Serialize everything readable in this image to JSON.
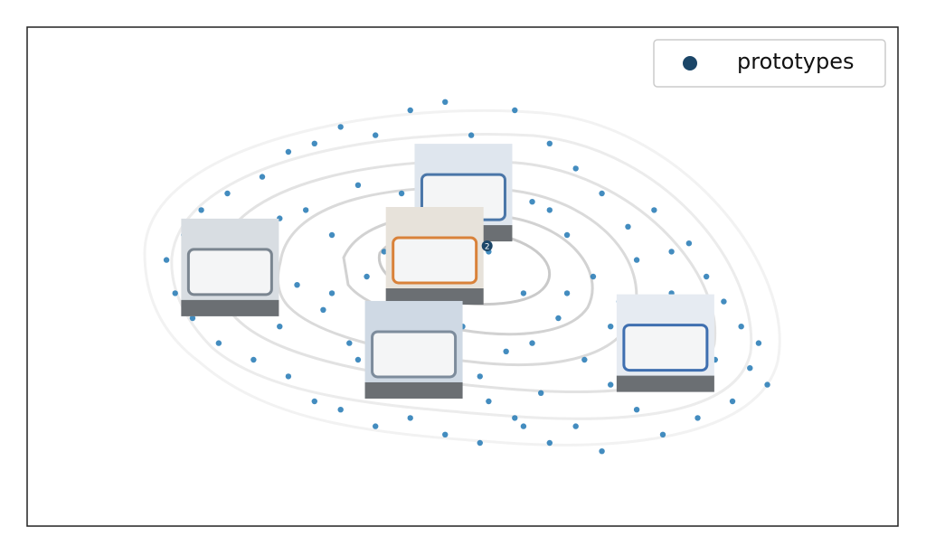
{
  "chart_data": {
    "type": "scatter",
    "xlim": [
      0,
      100
    ],
    "ylim": [
      0,
      60
    ],
    "points": {
      "color": "#2f7fb8",
      "x": [
        16,
        17,
        18,
        19,
        20,
        21,
        22,
        23,
        24,
        25,
        26,
        27,
        28,
        29,
        30,
        30,
        31,
        32,
        33,
        33,
        34,
        35,
        36,
        36,
        37,
        38,
        39,
        40,
        40,
        41,
        42,
        43,
        44,
        44,
        45,
        46,
        47,
        48,
        48,
        49,
        50,
        51,
        52,
        52,
        53,
        54,
        55,
        56,
        56,
        57,
        58,
        59,
        60,
        60,
        61,
        62,
        63,
        63,
        64,
        65,
        66,
        66,
        67,
        68,
        69,
        70,
        70,
        71,
        72,
        73,
        74,
        75,
        76,
        77,
        77,
        78,
        79,
        80,
        81,
        82,
        83,
        84,
        85,
        26,
        35,
        43,
        55,
        62,
        50,
        58,
        38,
        47,
        67,
        29,
        74,
        53,
        41,
        60,
        45,
        57
      ],
      "y": [
        32,
        28,
        35,
        25,
        38,
        30,
        22,
        40,
        27,
        36,
        20,
        42,
        33,
        24,
        45,
        18,
        29,
        38,
        15,
        46,
        26,
        35,
        14,
        48,
        22,
        41,
        30,
        12,
        47,
        19,
        36,
        26,
        50,
        13,
        42,
        16,
        29,
        51,
        11,
        37,
        24,
        47,
        18,
        10,
        33,
        44,
        21,
        50,
        13,
        28,
        39,
        16,
        46,
        10,
        25,
        35,
        43,
        12,
        20,
        30,
        40,
        9,
        17,
        27,
        36,
        14,
        32,
        22,
        38,
        11,
        28,
        18,
        34,
        13,
        25,
        30,
        20,
        27,
        15,
        24,
        19,
        22,
        17,
        31,
        28,
        40,
        35,
        28,
        30,
        22,
        20,
        44,
        24,
        37,
        33,
        15,
        33,
        38,
        24,
        12
      ]
    },
    "series": [
      {
        "name": "prototypes",
        "color": "#1b4668",
        "x": [
          23.3,
          50.1,
          46.8,
          44.4,
          73.3
        ],
        "y": [
          31.1,
          40.1,
          32.5,
          21.2,
          22.0
        ]
      }
    ],
    "annotation": "2",
    "legend": "upper right"
  }
}
